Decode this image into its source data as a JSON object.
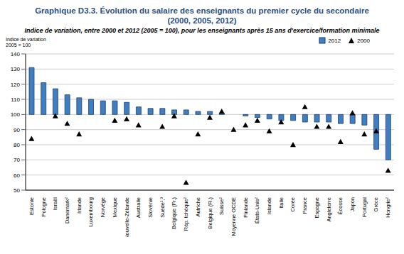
{
  "chart_data": {
    "type": "bar",
    "title": "Graphique D3.3.  Évolution du salaire des enseignants du premier cycle du secondaire (2000, 2005, 2012)",
    "subtitle": "Indice de variation, entre 2000 et 2012 (2005 = 100), pour les enseignants après 15 ans d'exercice/formation minimale",
    "y_label": "Indice de variation 2005 = 100",
    "categories": [
      "Estonie",
      "Pologne",
      "Israël",
      "Danemark²",
      "Irlande",
      "Luxembourg",
      "Norvège",
      "Mexique",
      "Nouvelle-Zélande",
      "Australie",
      "Slovénie",
      "Suède²,³",
      "Belgique (Fr.)",
      "Rép. tchèque²",
      "Autriche",
      "Belgique (Fl.)",
      "Suisse²",
      "Moyenne OCDE",
      "Finlande",
      "États-Unis²",
      "Islande",
      "Italie",
      "Corée",
      "France",
      "Espagne",
      "Angleterre",
      "Écosse",
      "Japon",
      "Portugal",
      "Grèce",
      "Hongrie²"
    ],
    "series": [
      {
        "name": "2012",
        "type": "bar",
        "color": "#3f7fbf",
        "values": [
          131,
          121,
          117,
          113,
          111,
          110,
          109,
          109,
          108,
          105,
          104,
          104,
          103,
          103,
          102,
          102,
          101,
          100,
          99,
          98,
          97,
          96,
          96,
          95,
          95,
          95,
          94,
          94,
          93,
          77,
          70
        ]
      },
      {
        "name": "2000",
        "type": "scatter",
        "marker": "triangle",
        "color": "#000000",
        "values": [
          84,
          null,
          99,
          94,
          87,
          null,
          null,
          96,
          97,
          93,
          null,
          92,
          99,
          55,
          87,
          98,
          102,
          90,
          93,
          96,
          89,
          95,
          80,
          105,
          92,
          92,
          82,
          101,
          87,
          89,
          63
        ]
      }
    ],
    "base_value": 100,
    "ylim": [
      50,
      140
    ],
    "yticks": [
      50,
      60,
      70,
      80,
      90,
      100,
      110,
      120,
      130,
      140
    ],
    "grid": true,
    "legend": "top-right"
  }
}
